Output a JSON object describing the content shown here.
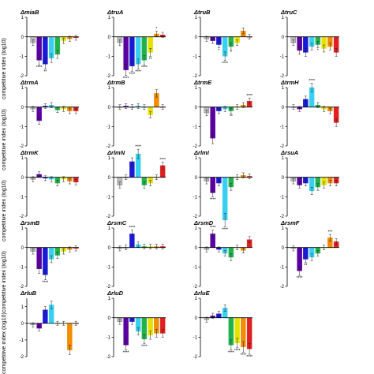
{
  "y_axis_label": "competitive index (log10)",
  "colors": [
    "#bdbdbd",
    "#5a00a0",
    "#1a1ad6",
    "#38d0f0",
    "#22b24c",
    "#e6e200",
    "#f28c00",
    "#e02020"
  ],
  "chart_data": [
    {
      "type": "bar",
      "title": "ΔmiaB",
      "ylim": [
        -2,
        1
      ],
      "yticks": [
        -2,
        -1,
        0,
        1
      ],
      "values": [
        -0.3,
        -1.2,
        -1.4,
        -1.1,
        -0.9,
        -0.2,
        -0.1,
        -0.05
      ],
      "annotations": [
        "",
        "****",
        "**",
        "",
        "",
        "",
        "",
        ""
      ]
    },
    {
      "type": "bar",
      "title": "ΔtruA",
      "ylim": [
        -2,
        1
      ],
      "yticks": [
        -2,
        -1,
        0,
        1
      ],
      "values": [
        -0.3,
        -1.7,
        -1.5,
        -1.4,
        -1.2,
        -0.8,
        0.15,
        0.1
      ],
      "annotations": [
        "",
        "****",
        "****",
        "****",
        "****",
        "**",
        "*",
        ""
      ]
    },
    {
      "type": "bar",
      "title": "ΔtruB",
      "ylim": [
        -2,
        1
      ],
      "yticks": [
        -2,
        -1,
        0,
        1
      ],
      "values": [
        -0.1,
        -0.2,
        -0.4,
        -1.0,
        -0.5,
        -0.3,
        0.3,
        0.0
      ],
      "annotations": [
        "",
        "",
        "*",
        "****",
        "*",
        "",
        "",
        ""
      ]
    },
    {
      "type": "bar",
      "title": "ΔtruC",
      "ylim": [
        -2,
        1
      ],
      "yticks": [
        -2,
        -1,
        0,
        1
      ],
      "values": [
        -0.3,
        -0.7,
        -0.8,
        -0.5,
        -0.4,
        -0.6,
        -0.5,
        -0.8
      ],
      "annotations": [
        "",
        "",
        "",
        "",
        "*",
        "",
        "",
        ""
      ]
    },
    {
      "type": "bar",
      "title": "ΔtrmA",
      "ylim": [
        -2,
        1
      ],
      "yticks": [
        -2,
        -1,
        0,
        1
      ],
      "values": [
        -0.1,
        -0.7,
        0.05,
        0.1,
        -0.15,
        -0.1,
        -0.2,
        -0.2
      ],
      "annotations": [
        "",
        "",
        "",
        "",
        "",
        "",
        "",
        ""
      ]
    },
    {
      "type": "bar",
      "title": "ΔtrmB",
      "ylim": [
        -2,
        1
      ],
      "yticks": [
        -2,
        -1,
        0,
        1
      ],
      "values": [
        0.0,
        0.05,
        0.0,
        0.05,
        0.0,
        -0.4,
        0.7,
        0.0
      ],
      "annotations": [
        "",
        "",
        "",
        "",
        "",
        "",
        "",
        ""
      ]
    },
    {
      "type": "bar",
      "title": "ΔtrmE",
      "ylim": [
        -2,
        1
      ],
      "yticks": [
        -2,
        -1,
        0,
        1
      ],
      "values": [
        -0.3,
        -1.6,
        -0.2,
        -0.1,
        -0.2,
        0.0,
        0.1,
        0.3
      ],
      "annotations": [
        "",
        "",
        "",
        "",
        "**",
        "",
        "",
        "****"
      ]
    },
    {
      "type": "bar",
      "title": "ΔtrmH",
      "ylim": [
        -2,
        1
      ],
      "yticks": [
        -2,
        -1,
        0,
        1
      ],
      "values": [
        0.0,
        -0.1,
        0.4,
        1.0,
        0.1,
        -0.1,
        -0.2,
        -0.8
      ],
      "annotations": [
        "",
        "",
        "",
        "****",
        "",
        "",
        "",
        ""
      ]
    },
    {
      "type": "bar",
      "title": "ΔtrmK",
      "ylim": [
        -2,
        1
      ],
      "yticks": [
        -2,
        -1,
        0,
        1
      ],
      "values": [
        -0.1,
        0.15,
        -0.05,
        -0.1,
        -0.3,
        -0.1,
        -0.2,
        -0.25
      ],
      "annotations": [
        "",
        "",
        "",
        "",
        "",
        "",
        "",
        ""
      ]
    },
    {
      "type": "bar",
      "title": "ΔrlmN",
      "ylim": [
        -2,
        1
      ],
      "yticks": [
        -2,
        -1,
        0,
        1
      ],
      "values": [
        -0.4,
        0.0,
        0.8,
        1.2,
        -0.4,
        -0.3,
        0.0,
        0.6
      ],
      "annotations": [
        "",
        "",
        "",
        "****",
        "",
        "",
        "",
        "****"
      ]
    },
    {
      "type": "bar",
      "title": "ΔrlmI",
      "ylim": [
        -2,
        1
      ],
      "yticks": [
        -2,
        -1,
        0,
        1
      ],
      "values": [
        -0.2,
        -0.8,
        -0.3,
        -2.2,
        -0.5,
        0.0,
        0.1,
        0.05
      ],
      "annotations": [
        "",
        "****",
        "",
        "****",
        "",
        "",
        "",
        ""
      ]
    },
    {
      "type": "bar",
      "title": "ΔrsuA",
      "ylim": [
        -2,
        1
      ],
      "yticks": [
        -2,
        -1,
        0,
        1
      ],
      "values": [
        -0.2,
        -0.4,
        -0.3,
        -0.7,
        -0.5,
        -0.4,
        -0.3,
        -0.3
      ],
      "annotations": [
        "",
        "",
        "",
        "",
        "",
        "",
        "",
        ""
      ]
    },
    {
      "type": "bar",
      "title": "ΔrsmB",
      "ylim": [
        -2,
        1
      ],
      "yticks": [
        -2,
        -1,
        0,
        1
      ],
      "values": [
        -0.2,
        -1.1,
        -1.4,
        -0.6,
        -0.4,
        -0.2,
        -0.1,
        -0.05
      ],
      "annotations": [
        "",
        "",
        "****",
        "",
        "",
        "",
        "",
        ""
      ]
    },
    {
      "type": "bar",
      "title": "ΔrsmC",
      "ylim": [
        -2,
        1
      ],
      "yticks": [
        -2,
        -1,
        0,
        1
      ],
      "values": [
        -0.05,
        0.0,
        0.7,
        0.15,
        0.05,
        0.05,
        0.05,
        0.05
      ],
      "annotations": [
        "",
        "",
        "****",
        "",
        "",
        "",
        "",
        ""
      ]
    },
    {
      "type": "bar",
      "title": "ΔrsmD",
      "ylim": [
        -2,
        1
      ],
      "yticks": [
        -2,
        -1,
        0,
        1
      ],
      "values": [
        -0.1,
        0.7,
        -0.1,
        -0.3,
        -0.5,
        0.0,
        -0.15,
        0.4
      ],
      "annotations": [
        "",
        "****",
        "",
        "",
        "",
        "",
        "",
        ""
      ]
    },
    {
      "type": "bar",
      "title": "ΔrsmF",
      "ylim": [
        -2,
        1
      ],
      "yticks": [
        -2,
        -1,
        0,
        1
      ],
      "values": [
        -0.05,
        -1.2,
        -0.6,
        -0.5,
        -0.3,
        0.0,
        0.5,
        0.3
      ],
      "annotations": [
        "",
        "****",
        "**",
        "",
        "",
        "",
        "***",
        ""
      ]
    },
    {
      "type": "bar",
      "title": "ΔrluB",
      "ylim": [
        -2,
        1.5
      ],
      "yticks": [
        -2,
        -1,
        0,
        1
      ],
      "values": [
        -0.1,
        -0.3,
        0.8,
        1.1,
        0.0,
        0.0,
        -1.6,
        0.0
      ],
      "annotations": [
        "",
        "",
        "",
        "",
        "",
        "",
        "",
        ""
      ]
    },
    {
      "type": "bar",
      "title": "ΔrluD",
      "ylim": [
        -2,
        1
      ],
      "yticks": [
        -2,
        -1,
        0,
        1
      ],
      "values": [
        -0.2,
        -1.4,
        -0.2,
        -0.7,
        -1.1,
        -0.9,
        -0.8,
        -0.8
      ],
      "annotations": [
        "",
        "****",
        "",
        "",
        "****",
        "",
        "",
        ""
      ]
    },
    {
      "type": "bar",
      "title": "ΔrluE",
      "ylim": [
        -2,
        1
      ],
      "yticks": [
        -2,
        -1,
        0,
        1
      ],
      "values": [
        -0.1,
        0.1,
        0.2,
        0.5,
        -1.4,
        -1.3,
        -1.5,
        -1.6
      ],
      "annotations": [
        "",
        "",
        "",
        "",
        "****",
        "****",
        "****",
        "****"
      ]
    }
  ]
}
